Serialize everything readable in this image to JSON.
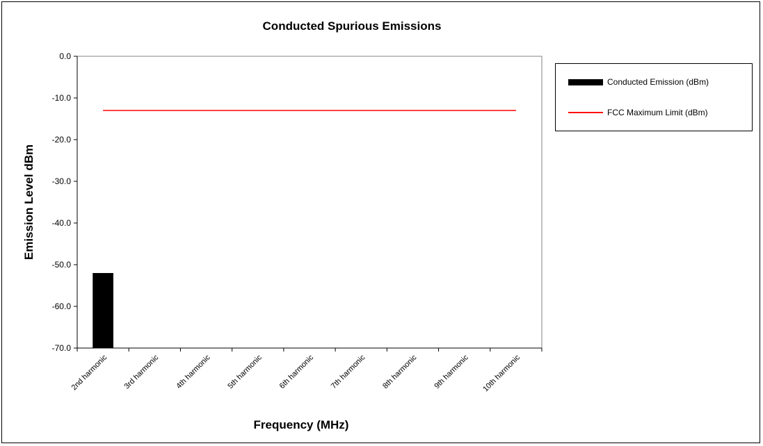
{
  "chart_data": {
    "type": "bar",
    "title": "Conducted Spurious Emissions",
    "xlabel": "Frequency (MHz)",
    "ylabel": "Emission Level dBm",
    "ylim": [
      -70,
      0
    ],
    "yticks": [
      "0.0",
      "-10.0",
      "-20.0",
      "-30.0",
      "-40.0",
      "-50.0",
      "-60.0",
      "-70.0"
    ],
    "categories": [
      "2nd harmonic",
      "3rd harmonic",
      "4th harmonic",
      "5th harmonic",
      "6th harmonic",
      "7th harmonic",
      "8th harmonic",
      "9th harmonic",
      "10th harmonic"
    ],
    "series": [
      {
        "name": "Conducted Emission (dBm)",
        "type": "bar",
        "color": "#000000",
        "values": [
          -52,
          null,
          null,
          null,
          null,
          null,
          null,
          null,
          null
        ]
      },
      {
        "name": "FCC Maximum Limit (dBm)",
        "type": "line",
        "color": "#ff0000",
        "values": [
          -13,
          -13,
          -13,
          -13,
          -13,
          -13,
          -13,
          -13,
          -13
        ]
      }
    ],
    "grid": false,
    "legend_position": "right"
  }
}
